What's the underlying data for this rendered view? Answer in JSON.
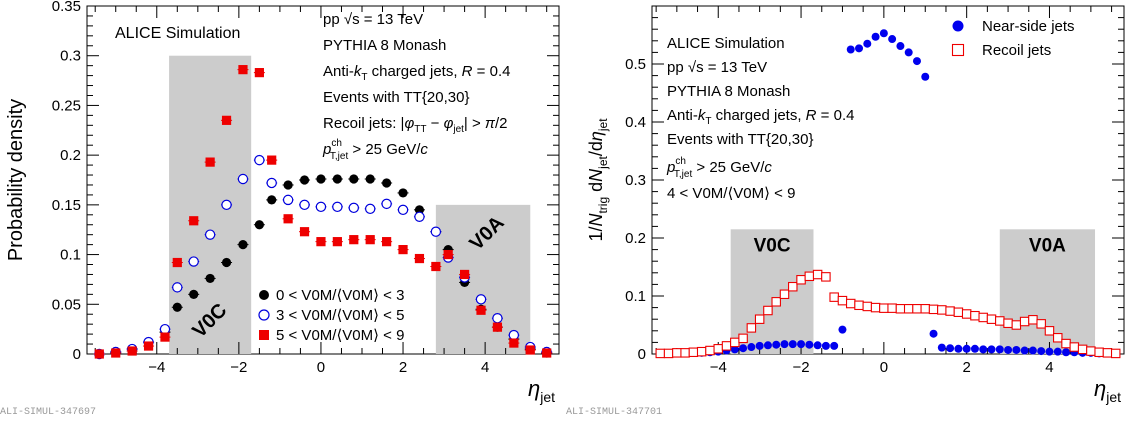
{
  "chart_data": [
    {
      "type": "scatter",
      "footer_id": "ALI-SIMUL-347697",
      "xlabel": "η_jet",
      "ylabel": "Probability density",
      "xlim": [
        -5.7,
        5.8
      ],
      "ylim": [
        0,
        0.35
      ],
      "xticks": [
        -4,
        -2,
        0,
        2,
        4
      ],
      "yticks": [
        0,
        0.05,
        0.1,
        0.15,
        0.2,
        0.25,
        0.3,
        0.35
      ],
      "ytick_labels": [
        "0",
        "0.05",
        "0.1",
        "0.15",
        "0.2",
        "0.25",
        "0.3",
        "0.35"
      ],
      "sim_label": "ALICE Simulation",
      "annotations": [
        "pp √s = 13 TeV",
        "PYTHIA 8 Monash",
        "Anti-kT charged jets, R = 0.4",
        "Events with TT{20,30}",
        "Recoil jets: |φTT − φjet| > π/2",
        "p^ch_T,jet > 25 GeV/c"
      ],
      "bands": [
        {
          "name": "V0C",
          "xmin": -3.7,
          "xmax": -1.7,
          "ymax": 0.3
        },
        {
          "name": "V0A",
          "xmin": 2.8,
          "xmax": 5.1,
          "ymax": 0.15
        }
      ],
      "x": [
        -5.4,
        -5.0,
        -4.6,
        -4.2,
        -3.8,
        -3.5,
        -3.1,
        -2.7,
        -2.3,
        -1.9,
        -1.5,
        -1.2,
        -0.8,
        -0.4,
        0.0,
        0.4,
        0.8,
        1.2,
        1.6,
        2.0,
        2.4,
        2.8,
        3.1,
        3.5,
        3.9,
        4.3,
        4.7,
        5.1,
        5.5
      ],
      "series": [
        {
          "name": "0 < V0M/⟨V0M⟩ < 3",
          "marker": "filled-circle",
          "color": "#000000",
          "values": [
            0.0,
            0.002,
            0.005,
            0.012,
            0.022,
            0.047,
            0.06,
            0.076,
            0.092,
            0.11,
            0.13,
            0.155,
            0.17,
            0.175,
            0.176,
            0.176,
            0.176,
            0.176,
            0.172,
            0.162,
            0.145,
            0.123,
            0.105,
            0.072,
            0.045,
            0.027,
            0.015,
            0.005,
            0.001
          ]
        },
        {
          "name": "3 < V0M/⟨V0M⟩ < 5",
          "marker": "open-circle",
          "color": "#0000dd",
          "values": [
            0.0,
            0.002,
            0.005,
            0.012,
            0.025,
            0.067,
            0.093,
            0.12,
            0.15,
            0.176,
            0.195,
            0.172,
            0.155,
            0.15,
            0.148,
            0.148,
            0.147,
            0.146,
            0.151,
            0.145,
            0.138,
            0.123,
            0.097,
            0.077,
            0.055,
            0.036,
            0.019,
            0.007,
            0.002
          ]
        },
        {
          "name": "5 < V0M/⟨V0M⟩ < 9",
          "marker": "filled-square",
          "color": "#ee0000",
          "values": [
            0.0,
            0.001,
            0.003,
            0.008,
            0.017,
            0.092,
            0.134,
            0.193,
            0.235,
            0.286,
            0.283,
            0.195,
            0.136,
            0.123,
            0.113,
            0.113,
            0.115,
            0.115,
            0.113,
            0.105,
            0.096,
            0.088,
            0.1,
            0.08,
            0.044,
            0.027,
            0.011,
            0.004,
            0.001
          ]
        }
      ],
      "legend": "bottom-center"
    },
    {
      "type": "scatter",
      "footer_id": "ALI-SIMUL-347701",
      "xlabel": "η_jet",
      "ylabel": "1/N_trig dN_jet/dη_jet",
      "xlim": [
        -5.6,
        5.8
      ],
      "ylim": [
        0,
        0.6
      ],
      "xticks": [
        -4,
        -2,
        0,
        2,
        4
      ],
      "yticks": [
        0,
        0.1,
        0.2,
        0.3,
        0.4,
        0.5
      ],
      "ytick_labels": [
        "0",
        "0.1",
        "0.2",
        "0.3",
        "0.4",
        "0.5"
      ],
      "sim_label": "ALICE Simulation",
      "annotations": [
        "pp √s = 13 TeV",
        "PYTHIA 8 Monash",
        "Anti-kT charged jets, R = 0.4",
        "Events with TT{20,30}",
        "p^ch_T,jet > 25 GeV/c",
        "4 < V0M/⟨V0M⟩ < 9"
      ],
      "bands": [
        {
          "name": "V0C",
          "xmin": -3.7,
          "xmax": -1.7,
          "ymax": 0.215
        },
        {
          "name": "V0A",
          "xmin": 2.8,
          "xmax": 5.1,
          "ymax": 0.215
        }
      ],
      "series": [
        {
          "name": "Near-side jets",
          "marker": "filled-circle",
          "color": "#0000ee",
          "x": [
            -5.4,
            -5.2,
            -5.0,
            -4.8,
            -4.6,
            -4.4,
            -4.2,
            -4.0,
            -3.8,
            -3.6,
            -3.4,
            -3.2,
            -3.0,
            -2.8,
            -2.6,
            -2.4,
            -2.2,
            -2.0,
            -1.8,
            -1.6,
            -1.4,
            -1.2,
            -1.0,
            -0.8,
            -0.6,
            -0.4,
            -0.2,
            0.0,
            0.2,
            0.4,
            0.6,
            0.8,
            1.0,
            1.2,
            1.4,
            1.6,
            1.8,
            2.0,
            2.2,
            2.4,
            2.6,
            2.8,
            3.0,
            3.2,
            3.4,
            3.6,
            3.8,
            4.0,
            4.2,
            4.4,
            4.6,
            4.8,
            5.0,
            5.2,
            5.4,
            5.6
          ],
          "values": [
            0.001,
            0.001,
            0.001,
            0.001,
            0.002,
            0.002,
            0.003,
            0.004,
            0.006,
            0.008,
            0.01,
            0.012,
            0.014,
            0.015,
            0.016,
            0.017,
            0.017,
            0.017,
            0.016,
            0.015,
            0.014,
            0.014,
            0.042,
            0.525,
            0.527,
            0.535,
            0.547,
            0.553,
            0.543,
            0.531,
            0.52,
            0.505,
            0.478,
            0.035,
            0.011,
            0.01,
            0.009,
            0.009,
            0.009,
            0.008,
            0.008,
            0.008,
            0.007,
            0.007,
            0.006,
            0.006,
            0.005,
            0.004,
            0.004,
            0.003,
            0.003,
            0.002,
            0.002,
            0.001,
            0.001,
            0.001
          ]
        },
        {
          "name": "Recoil jets",
          "marker": "open-square",
          "color": "#ee0000",
          "x": [
            -5.4,
            -5.2,
            -5.0,
            -4.8,
            -4.6,
            -4.4,
            -4.2,
            -4.0,
            -3.8,
            -3.6,
            -3.4,
            -3.2,
            -3.0,
            -2.8,
            -2.6,
            -2.4,
            -2.2,
            -2.0,
            -1.8,
            -1.6,
            -1.4,
            -1.2,
            -1.0,
            -0.8,
            -0.6,
            -0.4,
            -0.2,
            0.0,
            0.2,
            0.4,
            0.6,
            0.8,
            1.0,
            1.2,
            1.4,
            1.6,
            1.8,
            2.0,
            2.2,
            2.4,
            2.6,
            2.8,
            3.0,
            3.2,
            3.4,
            3.6,
            3.8,
            4.0,
            4.2,
            4.4,
            4.6,
            4.8,
            5.0,
            5.2,
            5.4,
            5.6
          ],
          "values": [
            0.001,
            0.001,
            0.002,
            0.002,
            0.003,
            0.004,
            0.006,
            0.009,
            0.014,
            0.02,
            0.027,
            0.045,
            0.06,
            0.075,
            0.09,
            0.103,
            0.116,
            0.128,
            0.134,
            0.137,
            0.133,
            0.098,
            0.092,
            0.087,
            0.084,
            0.082,
            0.08,
            0.079,
            0.079,
            0.078,
            0.078,
            0.078,
            0.078,
            0.077,
            0.076,
            0.074,
            0.072,
            0.069,
            0.066,
            0.063,
            0.06,
            0.057,
            0.053,
            0.05,
            0.056,
            0.059,
            0.052,
            0.04,
            0.028,
            0.018,
            0.012,
            0.008,
            0.005,
            0.003,
            0.002,
            0.001
          ]
        }
      ],
      "legend": "top-right"
    }
  ]
}
